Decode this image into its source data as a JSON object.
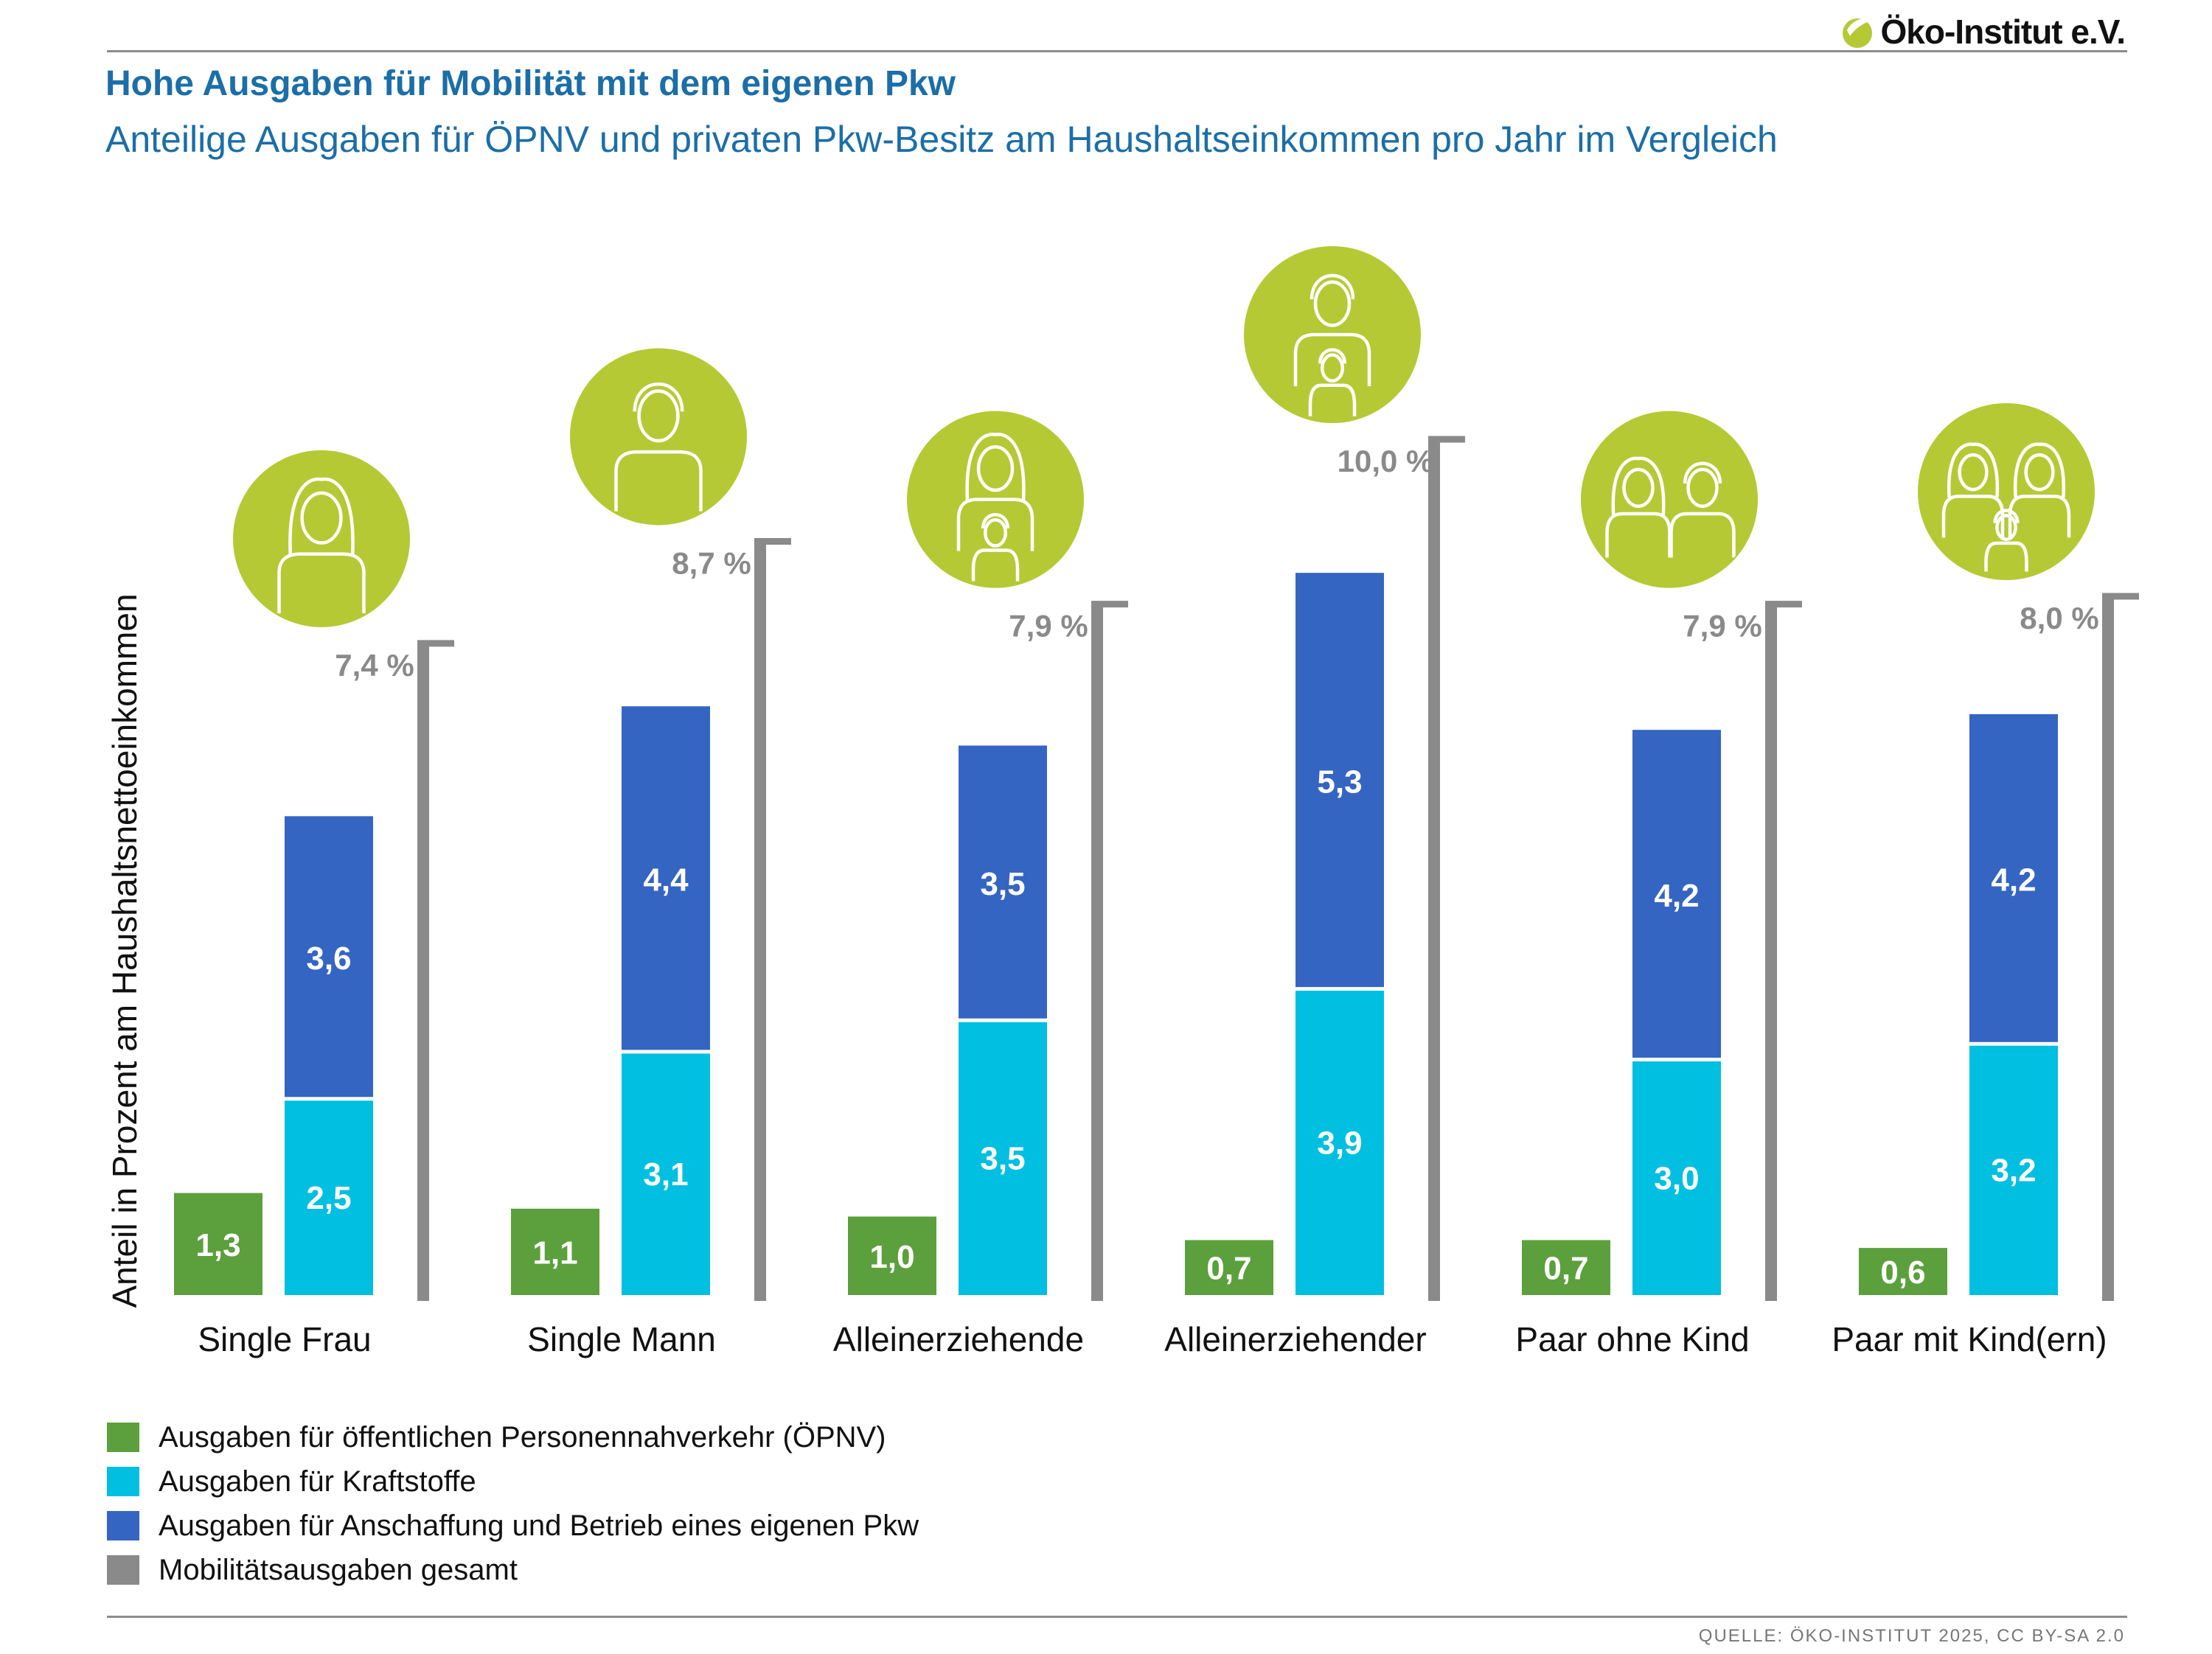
{
  "logo": {
    "text": "Öko-Institut e.V."
  },
  "title": "Hohe Ausgaben für Mobilität mit dem eigenen Pkw",
  "subtitle": "Anteilige Ausgaben für ÖPNV und privaten Pkw-Besitz am Haushaltseinkommen pro Jahr im Vergleich",
  "source": "QUELLE: ÖKO-INSTITUT 2025, CC BY-SA 2.0",
  "colors": {
    "oepnv": "#5ba03c",
    "kraftstoffe": "#00bfe0",
    "pkw": "#3565c3",
    "gesamt": "#8a8a8a",
    "icon_circle": "#b5c935",
    "title": "#1b6ea8"
  },
  "chart_data": {
    "type": "bar",
    "title": "Hohe Ausgaben für Mobilität mit dem eigenen Pkw",
    "subtitle": "Anteilige Ausgaben für ÖPNV und privaten Pkw-Besitz am Haushaltseinkommen pro Jahr im Vergleich",
    "ylabel": "Anteil in Prozent am Haushaltsnettoeinkommen",
    "xlabel": "",
    "ylim": [
      0,
      10.5
    ],
    "grid": false,
    "legend_position": "bottom-left",
    "categories": [
      "Single Frau",
      "Single Mann",
      "Alleinerziehende",
      "Alleinerziehender",
      "Paar ohne Kind",
      "Paar mit Kind(ern)"
    ],
    "category_icons": [
      "woman-icon",
      "man-icon",
      "mother-child-icon",
      "father-child-icon",
      "couple-icon",
      "family-icon"
    ],
    "series": [
      {
        "key": "oepnv",
        "name": "Ausgaben für öffentlichen Personennahverkehr (ÖPNV)",
        "values": [
          1.3,
          1.1,
          1.0,
          0.7,
          0.7,
          0.6
        ],
        "labels": [
          "1,3",
          "1,1",
          "1,0",
          "0,7",
          "0,7",
          "0,6"
        ]
      },
      {
        "key": "kraftstoffe",
        "name": "Ausgaben für Kraftstoffe",
        "values": [
          2.5,
          3.1,
          3.5,
          3.9,
          3.0,
          3.2
        ],
        "labels": [
          "2,5",
          "3,1",
          "3,5",
          "3,9",
          "3,0",
          "3,2"
        ]
      },
      {
        "key": "pkw",
        "name": "Ausgaben für Anschaffung und Betrieb eines eigenen Pkw",
        "values": [
          3.6,
          4.4,
          3.5,
          5.3,
          4.2,
          4.2
        ],
        "labels": [
          "3,6",
          "4,4",
          "3,5",
          "5,3",
          "4,2",
          "4,2"
        ]
      },
      {
        "key": "gesamt",
        "name": "Mobilitätsausgaben gesamt",
        "values": [
          7.4,
          8.7,
          7.9,
          10.0,
          7.9,
          8.0
        ],
        "labels": [
          "7,4 %",
          "8,7 %",
          "7,9 %",
          "10,0 %",
          "7,9 %",
          "8,0 %"
        ]
      }
    ]
  }
}
